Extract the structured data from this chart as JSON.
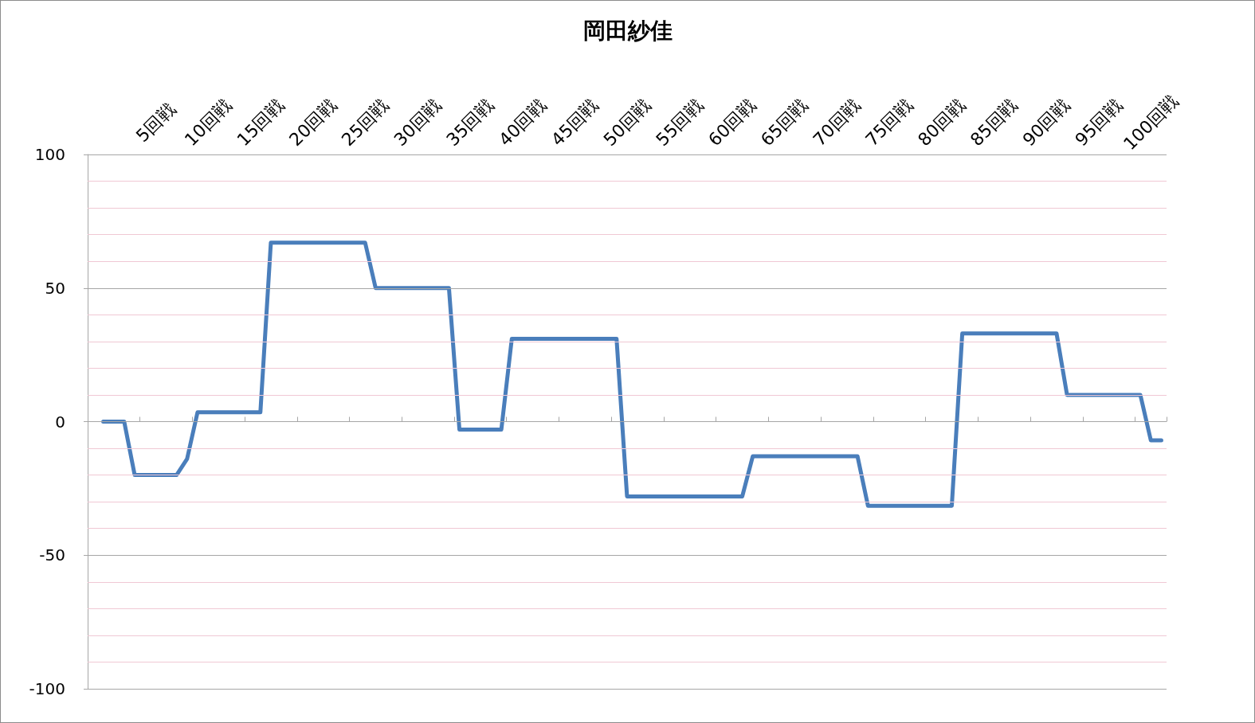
{
  "chart_data": {
    "type": "line",
    "title": "岡田紗佳",
    "categories": [
      null,
      null,
      null,
      null,
      null,
      "5回戦",
      null,
      null,
      null,
      null,
      "10回戦",
      null,
      null,
      null,
      null,
      "15回戦",
      null,
      null,
      null,
      null,
      "20回戦",
      null,
      null,
      null,
      null,
      "25回戦",
      null,
      null,
      null,
      null,
      "30回戦",
      null,
      null,
      null,
      null,
      "35回戦",
      null,
      null,
      null,
      null,
      "40回戦",
      null,
      null,
      null,
      null,
      "45回戦",
      null,
      null,
      null,
      null,
      "50回戦",
      null,
      null,
      null,
      null,
      "55回戦",
      null,
      null,
      null,
      null,
      "60回戦",
      null,
      null,
      null,
      null,
      "65回戦",
      null,
      null,
      null,
      null,
      "70回戦",
      null,
      null,
      null,
      null,
      "75回戦",
      null,
      null,
      null,
      null,
      "80回戦",
      null,
      null,
      null,
      null,
      "85回戦",
      null,
      null,
      null,
      null,
      "90回戦",
      null,
      null,
      null,
      null,
      "95回戦",
      null,
      null,
      null,
      null,
      "100回戦",
      null
    ],
    "series": [
      {
        "color": "#4a7ebb",
        "values": [
          0,
          0,
          0,
          -20,
          -20,
          -20,
          -20,
          -20,
          -14,
          3.5,
          3.5,
          3.5,
          3.5,
          3.5,
          3.5,
          3.5,
          67,
          67,
          67,
          67,
          67,
          67,
          67,
          67,
          67,
          67,
          50,
          50,
          50,
          50,
          50,
          50,
          50,
          50,
          -3,
          -3,
          -3,
          -3,
          -3,
          31,
          31,
          31,
          31,
          31,
          31,
          31,
          31,
          31,
          31,
          31,
          -28,
          -28,
          -28,
          -28,
          -28,
          -28,
          -28,
          -28,
          -28,
          -28,
          -28,
          -28,
          -13,
          -13,
          -13,
          -13,
          -13,
          -13,
          -13,
          -13,
          -13,
          -13,
          -13,
          -31.5,
          -31.5,
          -31.5,
          -31.5,
          -31.5,
          -31.5,
          -31.5,
          -31.5,
          -31.5,
          33,
          33,
          33,
          33,
          33,
          33,
          33,
          33,
          33,
          33,
          10,
          10,
          10,
          10,
          10,
          10,
          10,
          10,
          -7,
          -7
        ]
      }
    ],
    "ylim": [
      -100,
      100
    ],
    "yticks": [
      -100,
      {
        "value": -90,
        "label": null
      },
      {
        "value": -80,
        "label": null
      },
      {
        "value": -70,
        "label": null
      },
      {
        "value": -60,
        "label": null
      },
      -50,
      {
        "value": -40,
        "label": null
      },
      {
        "value": -30,
        "label": null
      },
      {
        "value": -20,
        "label": null
      },
      {
        "value": -10,
        "label": null
      },
      0,
      {
        "value": 10,
        "label": null
      },
      {
        "value": 20,
        "label": null
      },
      {
        "value": 30,
        "label": null
      },
      {
        "value": 40,
        "label": null
      },
      50,
      {
        "value": 60,
        "label": null
      },
      {
        "value": 70,
        "label": null
      },
      {
        "value": 80,
        "label": null
      },
      {
        "value": 90,
        "label": null
      },
      100
    ],
    "grid": "y",
    "line_style": "solid"
  }
}
